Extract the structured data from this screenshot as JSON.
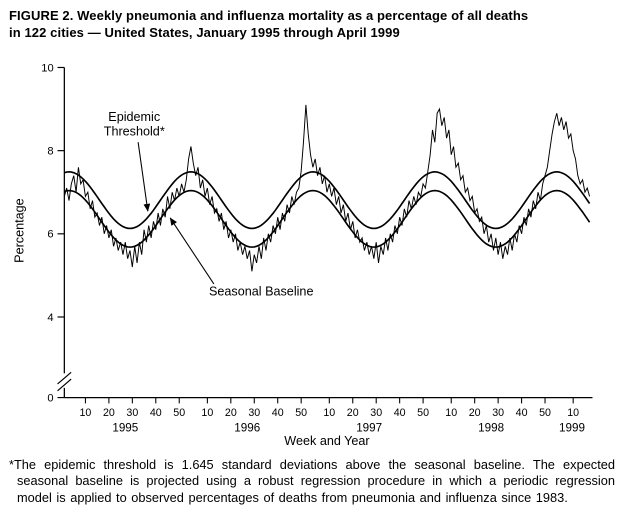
{
  "figure": {
    "title_line1": "FIGURE 2. Weekly pneumonia and influenza mortality as a percentage of all deaths",
    "title_line2": "in 122 cities — United States, January 1995 through April 1999",
    "footnote": "*The epidemic threshold is 1.645 standard deviations above the seasonal baseline. The expected seasonal baseline is projected using a robust regression procedure in which a periodic regression model is applied to observed percentages of deaths from pneumonia and influenza since 1983."
  },
  "colors": {
    "foreground": "#000000",
    "background": "#ffffff"
  },
  "chart_data": {
    "type": "line",
    "title": "Weekly pneumonia and influenza mortality as a percentage of all deaths in 122 cities, United States, January 1995 through April 1999",
    "xlabel": "Week and Year",
    "ylabel": "Percentage",
    "ylim": [
      4,
      10
    ],
    "yticks": [
      0,
      4,
      6,
      8,
      10
    ],
    "y_axis_break_between": [
      0,
      4
    ],
    "grid": false,
    "legend": "none (curves labeled by on-plot annotations)",
    "x_structure": {
      "years": [
        "1995",
        "1996",
        "1997",
        "1998",
        "1999"
      ],
      "weeks_per_year": [
        52,
        52,
        52,
        52,
        17
      ],
      "week_ticks_per_year": [
        10,
        20,
        30,
        40,
        50
      ]
    },
    "annotations": [
      {
        "id": "epidemic-threshold-label",
        "text_lines": [
          "Epidemic",
          "Threshold*"
        ],
        "points_to_series": "epidemic_threshold"
      },
      {
        "id": "seasonal-baseline-label",
        "text_lines": [
          "Seasonal Baseline"
        ],
        "points_to_series": "seasonal_baseline"
      }
    ],
    "series": [
      {
        "name": "observed_weekly_pi_percentage",
        "style": "thin jagged line",
        "values": [
          6.9,
          7.1,
          6.8,
          7.2,
          7.4,
          7.0,
          7.6,
          7.2,
          7.3,
          6.9,
          7.0,
          6.6,
          6.8,
          6.4,
          6.5,
          6.2,
          6.4,
          6.0,
          6.2,
          5.9,
          6.1,
          5.7,
          5.9,
          5.6,
          5.8,
          5.5,
          5.8,
          5.4,
          5.6,
          5.2,
          5.7,
          5.3,
          5.8,
          5.5,
          6.1,
          5.8,
          6.2,
          5.9,
          6.3,
          6.1,
          6.5,
          6.2,
          6.6,
          6.4,
          6.9,
          6.6,
          7.0,
          6.8,
          7.1,
          6.9,
          7.2,
          7.0,
          7.3,
          7.8,
          8.1,
          7.7,
          7.4,
          7.6,
          7.1,
          7.3,
          6.9,
          7.1,
          6.7,
          6.9,
          6.5,
          6.6,
          6.3,
          6.5,
          6.1,
          6.3,
          5.9,
          6.1,
          5.8,
          6.0,
          5.6,
          5.8,
          5.5,
          5.7,
          5.4,
          5.6,
          5.1,
          5.5,
          5.3,
          5.7,
          5.4,
          5.9,
          5.6,
          6.0,
          5.8,
          6.2,
          6.0,
          6.4,
          6.1,
          6.5,
          6.3,
          6.7,
          6.5,
          6.9,
          6.7,
          7.0,
          7.1,
          7.5,
          8.2,
          9.1,
          8.4,
          7.9,
          7.6,
          7.8,
          7.4,
          7.6,
          7.2,
          7.4,
          7.0,
          7.2,
          6.9,
          7.1,
          6.7,
          6.9,
          6.5,
          6.7,
          6.3,
          6.5,
          6.1,
          6.3,
          5.9,
          6.1,
          5.8,
          5.9,
          5.6,
          5.8,
          5.5,
          5.7,
          5.4,
          5.8,
          5.3,
          5.7,
          5.5,
          5.9,
          5.6,
          6.0,
          5.8,
          6.2,
          6.0,
          6.4,
          6.2,
          6.6,
          6.4,
          6.8,
          6.6,
          6.9,
          6.7,
          7.0,
          6.9,
          7.2,
          7.1,
          7.5,
          7.9,
          8.5,
          8.2,
          8.9,
          9.0,
          8.6,
          8.8,
          8.3,
          8.5,
          7.9,
          8.1,
          7.6,
          7.7,
          7.3,
          7.4,
          7.0,
          7.1,
          6.8,
          6.9,
          6.5,
          6.6,
          6.3,
          6.4,
          6.0,
          6.2,
          5.8,
          6.0,
          5.6,
          5.9,
          5.5,
          5.8,
          5.4,
          5.7,
          5.5,
          5.9,
          5.6,
          6.0,
          5.8,
          6.2,
          6.0,
          6.4,
          6.2,
          6.6,
          6.4,
          6.8,
          6.6,
          7.0,
          6.8,
          7.2,
          7.4,
          7.6,
          8.0,
          8.4,
          8.7,
          8.9,
          8.6,
          8.8,
          8.5,
          8.7,
          8.3,
          8.4,
          8.0,
          7.8,
          7.4,
          7.2,
          7.3,
          7.0,
          7.1,
          6.9
        ]
      },
      {
        "name": "seasonal_baseline",
        "style": "smooth thick curve",
        "model": {
          "type": "cosine",
          "mean": 6.36,
          "amplitude": 0.68,
          "period_weeks": 52,
          "peak_week_of_year": 3
        }
      },
      {
        "name": "epidemic_threshold",
        "style": "smooth thick curve",
        "model": {
          "type": "offset_above_baseline",
          "offset": 0.45
        }
      }
    ]
  }
}
